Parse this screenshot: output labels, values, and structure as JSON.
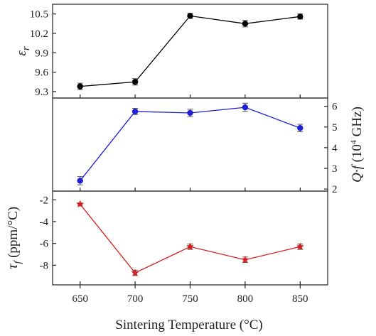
{
  "chart_data": {
    "type": "line",
    "xlabel": "Sintering Temperature  (°C)",
    "x": [
      650,
      700,
      750,
      800,
      850
    ],
    "xticks": [
      650,
      700,
      750,
      800,
      850
    ],
    "xlim": [
      625,
      875
    ],
    "panels": [
      {
        "id": "er",
        "ylabel": "εr",
        "ylabel_main": "ε",
        "ylabel_sub": "r",
        "yaxis_side": "left",
        "ylim": [
          9.2,
          10.65
        ],
        "yticks": [
          9.3,
          9.6,
          9.9,
          10.2,
          10.5
        ],
        "ytick_labels": [
          "9.3",
          "9.6",
          "9.9",
          "10.2",
          "10.5"
        ],
        "series": {
          "color": "#000000",
          "marker": "circle",
          "values": [
            9.38,
            9.45,
            10.47,
            10.35,
            10.46
          ],
          "errors": [
            0.05,
            0.05,
            0.04,
            0.05,
            0.04
          ]
        }
      },
      {
        "id": "qf",
        "ylabel": "Q·f (10⁴ GHz)",
        "ylabel_main": "Q·f",
        "ylabel_unit_pre": " (10",
        "ylabel_sup": "4",
        "ylabel_unit_post": " GHz)",
        "yaxis_side": "right",
        "ylim": [
          1.9,
          6.4
        ],
        "yticks": [
          2,
          3,
          4,
          5,
          6
        ],
        "ytick_labels": [
          "2",
          "3",
          "4",
          "5",
          "6"
        ],
        "series": {
          "color": "#1f1fd6",
          "marker": "circle",
          "values": [
            2.4,
            5.75,
            5.68,
            5.95,
            4.95
          ],
          "errors": [
            0.2,
            0.15,
            0.18,
            0.2,
            0.18
          ]
        }
      },
      {
        "id": "tf",
        "ylabel": "τf (ppm/°C)",
        "ylabel_main": "τ",
        "ylabel_sub": "f",
        "ylabel_unit": " (ppm/°C)",
        "yaxis_side": "left",
        "ylim": [
          -9.8,
          -1.2
        ],
        "yticks": [
          -2,
          -4,
          -6,
          -8
        ],
        "ytick_labels": [
          "-2",
          "-4",
          "-6",
          "-8"
        ],
        "series": {
          "color": "#d81e1e",
          "marker": "star",
          "values": [
            -2.4,
            -8.7,
            -6.3,
            -7.5,
            -6.3
          ],
          "errors": [
            0.1,
            0.25,
            0.25,
            0.25,
            0.25
          ]
        }
      }
    ]
  }
}
